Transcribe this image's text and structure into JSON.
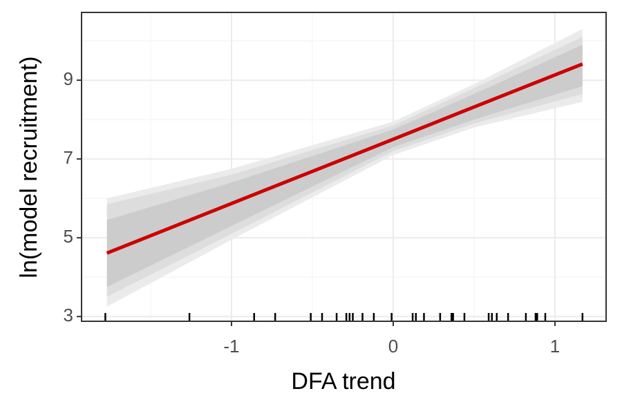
{
  "chart_data": {
    "type": "line",
    "x_label": "DFA trend",
    "y_label": "ln(model recruitment)",
    "x": [
      -1.77,
      -1,
      0,
      0.5,
      1.17
    ],
    "series": [
      {
        "color": "#cc0000",
        "values": [
          4.61,
          5.87,
          7.5,
          8.32,
          9.41
        ]
      }
    ],
    "bands": [
      {
        "color": "#ebebeb",
        "lower": [
          3.25,
          4.95,
          7.1,
          7.8,
          8.45
        ],
        "upper": [
          6.0,
          6.75,
          7.95,
          8.9,
          10.3
        ]
      },
      {
        "color": "#dddddd",
        "lower": [
          3.5,
          5.1,
          7.2,
          7.9,
          8.65
        ],
        "upper": [
          5.85,
          6.6,
          7.85,
          8.8,
          10.1
        ]
      },
      {
        "color": "#cccccc",
        "lower": [
          3.75,
          5.3,
          7.3,
          8.0,
          8.85
        ],
        "upper": [
          5.45,
          6.4,
          7.75,
          8.65,
          9.9
        ]
      }
    ],
    "rug": [
      -1.78,
      -1.26,
      -0.86,
      -0.73,
      -0.51,
      -0.44,
      -0.35,
      -0.29,
      -0.27,
      -0.25,
      -0.19,
      -0.12,
      -0.01,
      0.12,
      0.14,
      0.19,
      0.29,
      0.36,
      0.37,
      0.44,
      0.59,
      0.61,
      0.64,
      0.71,
      0.82,
      0.88,
      0.89,
      0.94,
      1.17
    ],
    "xlim": [
      -1.927,
      1.316
    ],
    "ylim": [
      2.88,
      10.72
    ],
    "xticks": [
      -1,
      0,
      1
    ],
    "yticks": [
      3,
      5,
      7,
      9
    ],
    "minor_xticks": [
      -1.5,
      -0.5,
      0.5
    ],
    "minor_yticks": [
      4,
      6,
      8,
      10
    ],
    "grid": true
  }
}
